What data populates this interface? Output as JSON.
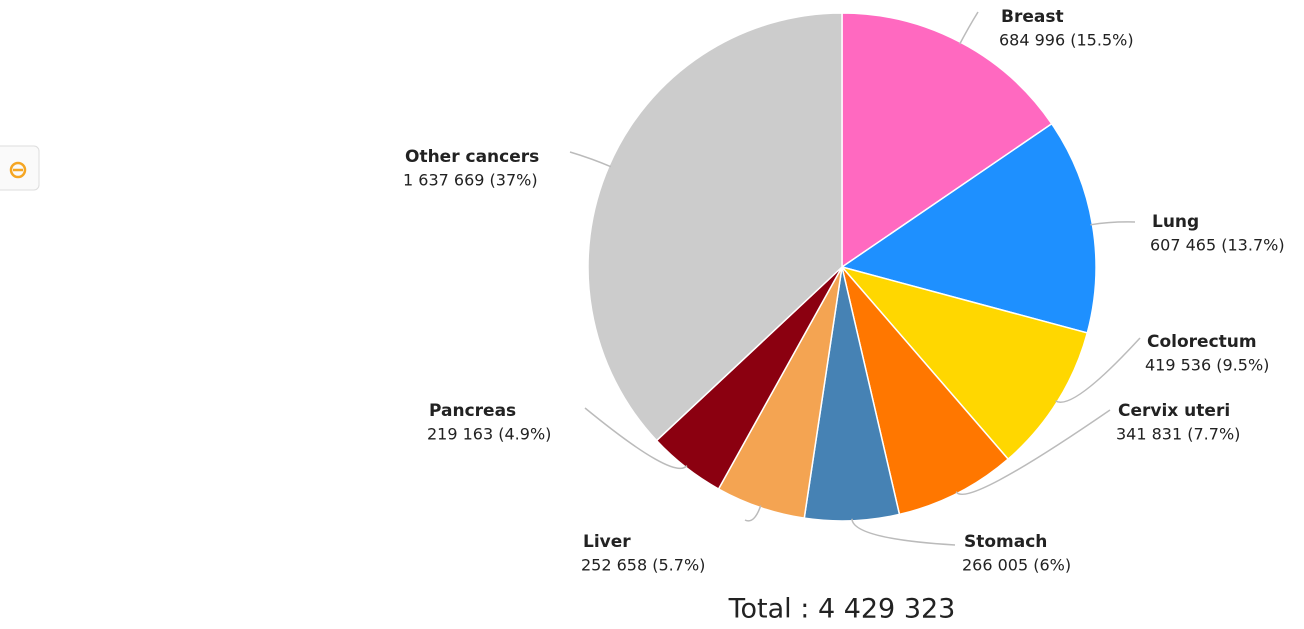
{
  "chart_data": {
    "type": "pie",
    "categories": [
      "Breast",
      "Lung",
      "Colorectum",
      "Cervix uteri",
      "Stomach",
      "Liver",
      "Pancreas",
      "Other cancers"
    ],
    "values": [
      684996,
      607465,
      419536,
      341831,
      266005,
      252658,
      219163,
      1637669
    ],
    "value_labels": [
      "684 996 (15.5%)",
      "607 465 (13.7%)",
      "419 536 (9.5%)",
      "341 831 (7.7%)",
      "266 005 (6%)",
      "252 658 (5.7%)",
      "219 163 (4.9%)",
      "1 637 669 (37%)"
    ],
    "colors": [
      "#ff69c0",
      "#1e90ff",
      "#ffd700",
      "#ff7700",
      "#4682b4",
      "#f4a452",
      "#8b0010",
      "#cccccc"
    ],
    "total": "Total : 4 429 323"
  }
}
